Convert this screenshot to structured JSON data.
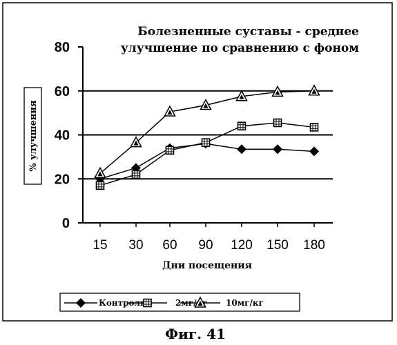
{
  "chart_data": {
    "type": "line",
    "title": [
      "Болезненные суставы - среднее",
      "улучшение по сравнению с фоном"
    ],
    "xlabel": "Дни посещения",
    "ylabel": "% улучшения",
    "categories": [
      "15",
      "30",
      "60",
      "90",
      "120",
      "150",
      "180"
    ],
    "yticks": [
      "0",
      "20",
      "40",
      "60",
      "80"
    ],
    "ylim": [
      0,
      80
    ],
    "gridlines": [
      20,
      40,
      60
    ],
    "legend_position": "bottom",
    "series": [
      {
        "name": "Контроль",
        "marker": "diamond",
        "values": [
          20,
          25,
          34,
          36,
          33.5,
          33.5,
          32.5
        ]
      },
      {
        "name": "2мг/кг",
        "marker": "square",
        "values": [
          17,
          22,
          33,
          36.5,
          44,
          45.5,
          43.5
        ]
      },
      {
        "name": "10мг/кг",
        "marker": "triangle",
        "values": [
          22.5,
          36.5,
          50.5,
          53.5,
          57.5,
          59.5,
          60
        ]
      }
    ]
  },
  "caption": "Фиг. 41"
}
